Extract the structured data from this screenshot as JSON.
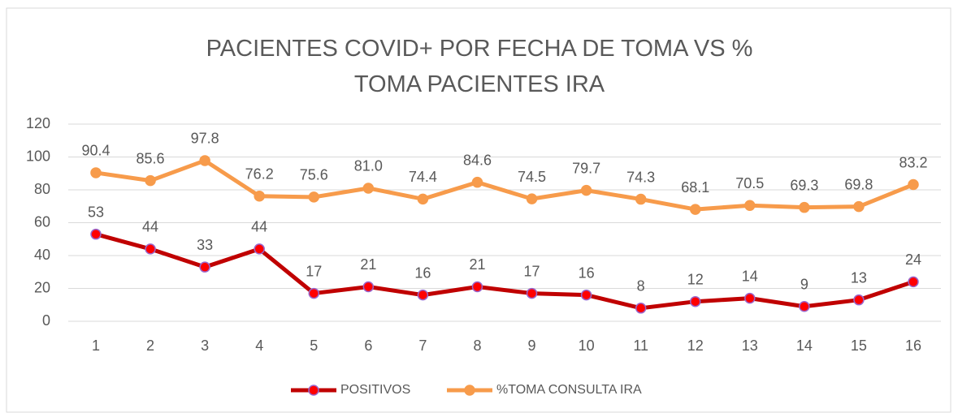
{
  "chart_data": {
    "type": "line",
    "title": "PACIENTES COVID+ POR FECHA DE TOMA VS % TOMA PACIENTES IRA",
    "categories": [
      "1",
      "2",
      "3",
      "4",
      "5",
      "6",
      "7",
      "8",
      "9",
      "10",
      "11",
      "12",
      "13",
      "14",
      "15",
      "16"
    ],
    "series": [
      {
        "name": "POSITIVOS",
        "color": "#c00000",
        "marker_color": "#ff0000",
        "values": [
          53,
          44,
          33,
          44,
          17,
          21,
          16,
          21,
          17,
          16,
          8,
          12,
          14,
          9,
          13,
          24
        ]
      },
      {
        "name": "%TOMA CONSULTA IRA",
        "color": "#f79b4b",
        "marker_color": "#f79b4b",
        "values": [
          90.4,
          85.6,
          97.8,
          76.2,
          75.6,
          81.0,
          74.4,
          84.6,
          74.5,
          79.7,
          74.3,
          68.1,
          70.5,
          69.3,
          69.8,
          83.2
        ],
        "value_labels": [
          "90.4",
          "85.6",
          "97.8",
          "76.2",
          "75.6",
          "81.0",
          "74.4",
          "84.6",
          "74.5",
          "79.7",
          "74.3",
          "68.1",
          "70.5",
          "69.3",
          "69.8",
          "83.2"
        ]
      }
    ],
    "ylim": [
      0,
      120
    ],
    "yticks": [
      0,
      20,
      40,
      60,
      80,
      100,
      120
    ],
    "grid": true,
    "legend": "bottom"
  }
}
